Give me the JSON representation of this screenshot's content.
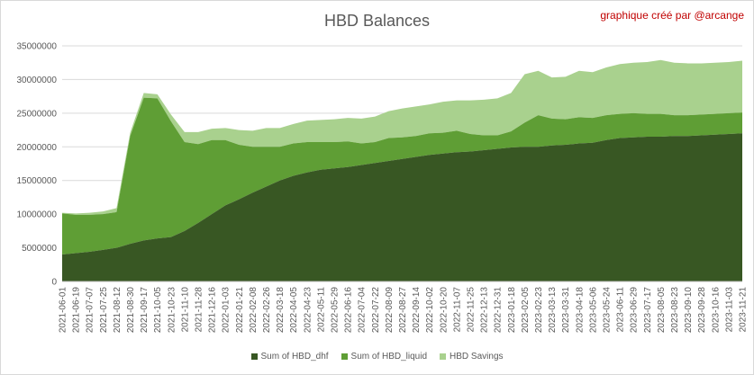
{
  "chart_title": "HBD Balances",
  "credit": "graphique créé par @arcange",
  "colors": {
    "dhf": "#385723",
    "liquid": "#5f9e35",
    "savings": "#a9d18e",
    "grid": "#d9d9d9",
    "credit": "#c00000"
  },
  "chart_data": {
    "type": "area",
    "stacked": true,
    "title": "HBD Balances",
    "xlabel": "",
    "ylabel": "",
    "ylim": [
      0,
      35000000
    ],
    "yticks": [
      0,
      5000000,
      10000000,
      15000000,
      20000000,
      25000000,
      30000000,
      35000000
    ],
    "grid": true,
    "legend_position": "bottom",
    "x_tick_labels": [
      "2021-06-01",
      "2021-06-19",
      "2021-07-07",
      "2021-07-25",
      "2021-08-12",
      "2021-08-30",
      "2021-09-17",
      "2021-10-05",
      "2021-10-23",
      "2021-11-10",
      "2021-11-28",
      "2021-12-16",
      "2022-01-03",
      "2022-01-21",
      "2022-02-08",
      "2022-02-26",
      "2022-03-18",
      "2022-04-05",
      "2022-04-23",
      "2022-05-11",
      "2022-05-29",
      "2022-06-16",
      "2022-07-04",
      "2022-07-22",
      "2022-08-09",
      "2022-08-27",
      "2022-09-14",
      "2022-10-02",
      "2022-10-20",
      "2022-11-07",
      "2022-11-25",
      "2022-12-13",
      "2022-12-31",
      "2023-01-18",
      "2023-02-05",
      "2023-02-23",
      "2023-03-13",
      "2023-03-31",
      "2023-04-18",
      "2023-05-06",
      "2023-05-24",
      "2023-06-11",
      "2023-06-29",
      "2023-07-17",
      "2023-08-05",
      "2023-08-23",
      "2023-09-10",
      "2023-09-28",
      "2023-10-16",
      "2023-11-03",
      "2023-11-21"
    ],
    "series": [
      {
        "name": "Sum of HBD_dhf",
        "values": [
          4000000,
          4200000,
          4400000,
          4700000,
          5000000,
          5600000,
          6100000,
          6400000,
          6600000,
          7500000,
          8700000,
          10000000,
          11300000,
          12200000,
          13200000,
          14100000,
          15000000,
          15700000,
          16200000,
          16600000,
          16800000,
          17000000,
          17300000,
          17600000,
          17900000,
          18200000,
          18500000,
          18800000,
          19000000,
          19200000,
          19300000,
          19500000,
          19700000,
          19900000,
          20000000,
          20000000,
          20200000,
          20300000,
          20500000,
          20600000,
          21000000,
          21300000,
          21400000,
          21500000,
          21500000,
          21600000,
          21600000,
          21700000,
          21800000,
          21900000,
          22000000
        ]
      },
      {
        "name": "Sum of HBD_liquid",
        "values": [
          6100000,
          5700000,
          5500000,
          5300000,
          5300000,
          16000000,
          21200000,
          20800000,
          17200000,
          13200000,
          11700000,
          11000000,
          9700000,
          8100000,
          6800000,
          5900000,
          5000000,
          4800000,
          4500000,
          4100000,
          3900000,
          3800000,
          3200000,
          3100000,
          3400000,
          3200000,
          3100000,
          3200000,
          3100000,
          3200000,
          2600000,
          2200000,
          2000000,
          2400000,
          3600000,
          4700000,
          4000000,
          3800000,
          3900000,
          3700000,
          3700000,
          3600000,
          3600000,
          3400000,
          3400000,
          3100000,
          3100000,
          3100000,
          3100000,
          3100000,
          3100000
        ]
      },
      {
        "name": "HBD Savings",
        "values": [
          100000,
          200000,
          300000,
          400000,
          600000,
          500000,
          700000,
          600000,
          1000000,
          1500000,
          1800000,
          1700000,
          1800000,
          2200000,
          2400000,
          2800000,
          2800000,
          2900000,
          3200000,
          3300000,
          3400000,
          3500000,
          3700000,
          3800000,
          4000000,
          4300000,
          4400000,
          4300000,
          4600000,
          4500000,
          5000000,
          5300000,
          5500000,
          5700000,
          7200000,
          6600000,
          6100000,
          6300000,
          6900000,
          6800000,
          7100000,
          7400000,
          7500000,
          7700000,
          8000000,
          7800000,
          7700000,
          7600000,
          7600000,
          7600000,
          7700000
        ]
      }
    ]
  }
}
